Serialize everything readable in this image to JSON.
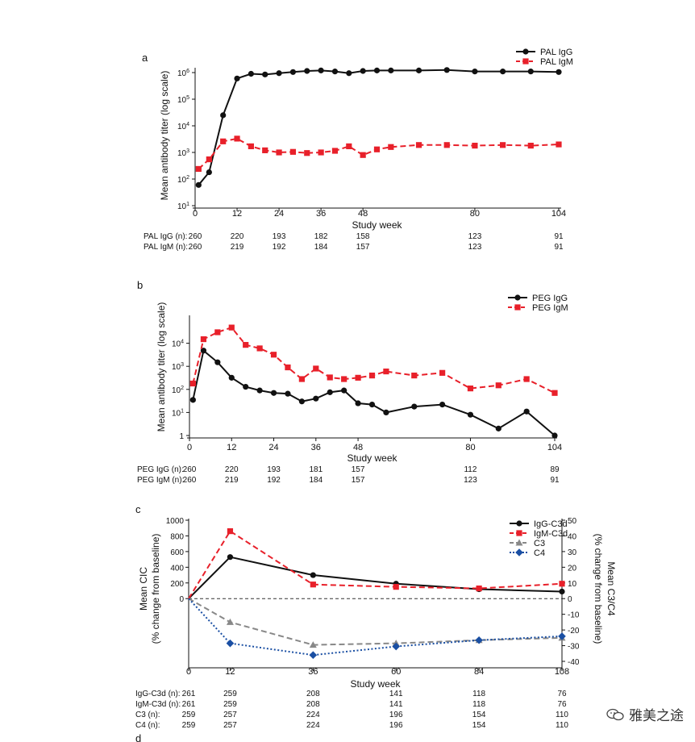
{
  "watermark": "雅美之途",
  "chart_data": [
    {
      "type": "line",
      "panel_label": "a",
      "ylabel": "Mean antibody titer (log scale)",
      "xlabel": "Study week",
      "log_y": true,
      "ylim": [
        10,
        1000000
      ],
      "y_ticks": [
        {
          "v": 10,
          "base": "10",
          "exp": "1"
        },
        {
          "v": 100,
          "base": "10",
          "exp": "2"
        },
        {
          "v": 1000,
          "base": "10",
          "exp": "3"
        },
        {
          "v": 10000,
          "base": "10",
          "exp": "4"
        },
        {
          "v": 100000,
          "base": "10",
          "exp": "5"
        },
        {
          "v": 1000000,
          "base": "10",
          "exp": "6"
        }
      ],
      "xlim": [
        0,
        104
      ],
      "x_ticks": [
        0,
        12,
        24,
        36,
        48,
        80,
        104
      ],
      "legend_position": "top-right",
      "series": [
        {
          "name": "PAL IgG",
          "color": "#111111",
          "dashed": false,
          "marker": "circle",
          "x": [
            1,
            4,
            8,
            12,
            16,
            20,
            24,
            28,
            32,
            36,
            40,
            44,
            48,
            52,
            56,
            64,
            72,
            80,
            88,
            96,
            104
          ],
          "y": [
            60,
            180,
            25000,
            600000,
            900000,
            850000,
            950000,
            1050000,
            1150000,
            1200000,
            1100000,
            950000,
            1150000,
            1200000,
            1200000,
            1200000,
            1250000,
            1100000,
            1100000,
            1100000,
            1050000
          ]
        },
        {
          "name": "PAL IgM",
          "color": "#e8202a",
          "dashed": true,
          "marker": "square",
          "x": [
            1,
            4,
            8,
            12,
            16,
            20,
            24,
            28,
            32,
            36,
            40,
            44,
            48,
            52,
            56,
            64,
            72,
            80,
            88,
            96,
            104
          ],
          "y": [
            240,
            550,
            2600,
            3300,
            1700,
            1200,
            1000,
            1050,
            950,
            1000,
            1150,
            1700,
            800,
            1300,
            1600,
            1900,
            1900,
            1800,
            1900,
            1800,
            2000
          ]
        }
      ],
      "n_table": {
        "rows": [
          {
            "label": "PAL IgG (n):",
            "cells": [
              {
                "x": 0,
                "v": "260"
              },
              {
                "x": 12,
                "v": "220"
              },
              {
                "x": 24,
                "v": "193"
              },
              {
                "x": 36,
                "v": "182"
              },
              {
                "x": 48,
                "v": "158"
              },
              {
                "x": 80,
                "v": "123"
              },
              {
                "x": 104,
                "v": "91"
              }
            ]
          },
          {
            "label": "PAL IgM (n):",
            "cells": [
              {
                "x": 0,
                "v": "260"
              },
              {
                "x": 12,
                "v": "219"
              },
              {
                "x": 24,
                "v": "192"
              },
              {
                "x": 36,
                "v": "184"
              },
              {
                "x": 48,
                "v": "157"
              },
              {
                "x": 80,
                "v": "123"
              },
              {
                "x": 104,
                "v": "91"
              }
            ]
          }
        ]
      }
    },
    {
      "type": "line",
      "panel_label": "b",
      "ylabel": "Mean antibody titer (log scale)",
      "xlabel": "Study week",
      "log_y": true,
      "ylim": [
        1,
        100000
      ],
      "y_ticks": [
        {
          "v": 1,
          "base": "1",
          "exp": ""
        },
        {
          "v": 10,
          "base": "10",
          "exp": "1"
        },
        {
          "v": 100,
          "base": "10",
          "exp": "2"
        },
        {
          "v": 1000,
          "base": "10",
          "exp": "3"
        },
        {
          "v": 10000,
          "base": "10",
          "exp": "4"
        }
      ],
      "xlim": [
        0,
        104
      ],
      "x_ticks": [
        0,
        12,
        24,
        36,
        48,
        80,
        104
      ],
      "legend_position": "top-right",
      "series": [
        {
          "name": "PEG IgG",
          "color": "#111111",
          "dashed": false,
          "marker": "circle",
          "x": [
            1,
            4,
            8,
            12,
            16,
            20,
            24,
            28,
            32,
            36,
            40,
            44,
            48,
            52,
            56,
            64,
            72,
            80,
            88,
            96,
            104
          ],
          "y": [
            35,
            4800,
            1500,
            320,
            130,
            90,
            70,
            65,
            30,
            40,
            75,
            90,
            25,
            22,
            10,
            18,
            22,
            8,
            2,
            11,
            1
          ]
        },
        {
          "name": "PEG IgM",
          "color": "#e8202a",
          "dashed": true,
          "marker": "square",
          "x": [
            1,
            4,
            8,
            12,
            16,
            20,
            24,
            28,
            32,
            36,
            40,
            44,
            48,
            52,
            56,
            64,
            72,
            80,
            88,
            96,
            104
          ],
          "y": [
            180,
            15000,
            30000,
            48000,
            8500,
            6000,
            3200,
            900,
            280,
            800,
            330,
            280,
            320,
            400,
            600,
            400,
            520,
            110,
            150,
            280,
            70
          ]
        }
      ],
      "n_table": {
        "rows": [
          {
            "label": "PEG IgG (n):",
            "cells": [
              {
                "x": 0,
                "v": "260"
              },
              {
                "x": 12,
                "v": "220"
              },
              {
                "x": 24,
                "v": "193"
              },
              {
                "x": 36,
                "v": "181"
              },
              {
                "x": 48,
                "v": "157"
              },
              {
                "x": 80,
                "v": "112"
              },
              {
                "x": 104,
                "v": "89"
              }
            ]
          },
          {
            "label": "PEG IgM (n):",
            "cells": [
              {
                "x": 0,
                "v": "260"
              },
              {
                "x": 12,
                "v": "219"
              },
              {
                "x": 24,
                "v": "192"
              },
              {
                "x": 36,
                "v": "184"
              },
              {
                "x": 48,
                "v": "157"
              },
              {
                "x": 80,
                "v": "123"
              },
              {
                "x": 104,
                "v": "91"
              }
            ]
          }
        ]
      }
    },
    {
      "type": "line",
      "panel_label": "c",
      "ylabel_left": [
        "Mean CIC",
        "(% change from baseline)"
      ],
      "ylabel_right": [
        "Mean C3/C4",
        "(% change from baseline)"
      ],
      "xlabel": "Study week",
      "xlim": [
        0,
        108
      ],
      "x_ticks": [
        0,
        12,
        36,
        60,
        84,
        108
      ],
      "ylim_left": [
        -800,
        1000
      ],
      "y_ticks_left": [
        0,
        200,
        400,
        600,
        800,
        1000
      ],
      "ylim_right": [
        -40,
        50
      ],
      "y_ticks_right": [
        50,
        40,
        30,
        20,
        10,
        0,
        -10,
        -20,
        -30,
        -40
      ],
      "zero_line": true,
      "legend_position": "top-right",
      "series": [
        {
          "name": "IgG-C3d",
          "axis": "left",
          "color": "#111111",
          "dashed": false,
          "marker": "circle",
          "x": [
            0,
            12,
            36,
            60,
            84,
            108
          ],
          "y": [
            0,
            530,
            300,
            190,
            120,
            90
          ]
        },
        {
          "name": "IgM-C3d",
          "axis": "left",
          "color": "#e8202a",
          "dashed": true,
          "marker": "square",
          "x": [
            0,
            12,
            36,
            60,
            84,
            108
          ],
          "y": [
            0,
            860,
            180,
            150,
            130,
            190
          ]
        },
        {
          "name": "C3",
          "axis": "right",
          "color": "#888888",
          "dashed": true,
          "marker": "triangle",
          "x": [
            0,
            12,
            36,
            60,
            84,
            108
          ],
          "y": [
            0,
            -15,
            -29.5,
            -28.5,
            -26.5,
            -25
          ]
        },
        {
          "name": "C4",
          "axis": "right",
          "color": "#1a4fa3",
          "dashed": true,
          "dotted": true,
          "marker": "diamond",
          "x": [
            0,
            12,
            36,
            60,
            84,
            108
          ],
          "y": [
            0,
            -28.5,
            -36,
            -30.5,
            -26.5,
            -24
          ]
        }
      ],
      "n_table": {
        "rows": [
          {
            "label": "IgG-C3d (n):",
            "cells": [
              {
                "x": 0,
                "v": "261"
              },
              {
                "x": 12,
                "v": "259"
              },
              {
                "x": 36,
                "v": "208"
              },
              {
                "x": 60,
                "v": "141"
              },
              {
                "x": 84,
                "v": "118"
              },
              {
                "x": 108,
                "v": "76"
              }
            ]
          },
          {
            "label": "IgM-C3d (n):",
            "cells": [
              {
                "x": 0,
                "v": "261"
              },
              {
                "x": 12,
                "v": "259"
              },
              {
                "x": 36,
                "v": "208"
              },
              {
                "x": 60,
                "v": "141"
              },
              {
                "x": 84,
                "v": "118"
              },
              {
                "x": 108,
                "v": "76"
              }
            ]
          },
          {
            "label": "C3 (n):",
            "cells": [
              {
                "x": 0,
                "v": "259"
              },
              {
                "x": 12,
                "v": "257"
              },
              {
                "x": 36,
                "v": "224"
              },
              {
                "x": 60,
                "v": "196"
              },
              {
                "x": 84,
                "v": "154"
              },
              {
                "x": 108,
                "v": "110"
              }
            ]
          },
          {
            "label": "C4 (n):",
            "cells": [
              {
                "x": 0,
                "v": "259"
              },
              {
                "x": 12,
                "v": "257"
              },
              {
                "x": 36,
                "v": "224"
              },
              {
                "x": 60,
                "v": "196"
              },
              {
                "x": 84,
                "v": "154"
              },
              {
                "x": 108,
                "v": "110"
              }
            ]
          }
        ]
      }
    },
    {
      "type": "line",
      "panel_label": "d"
    }
  ]
}
